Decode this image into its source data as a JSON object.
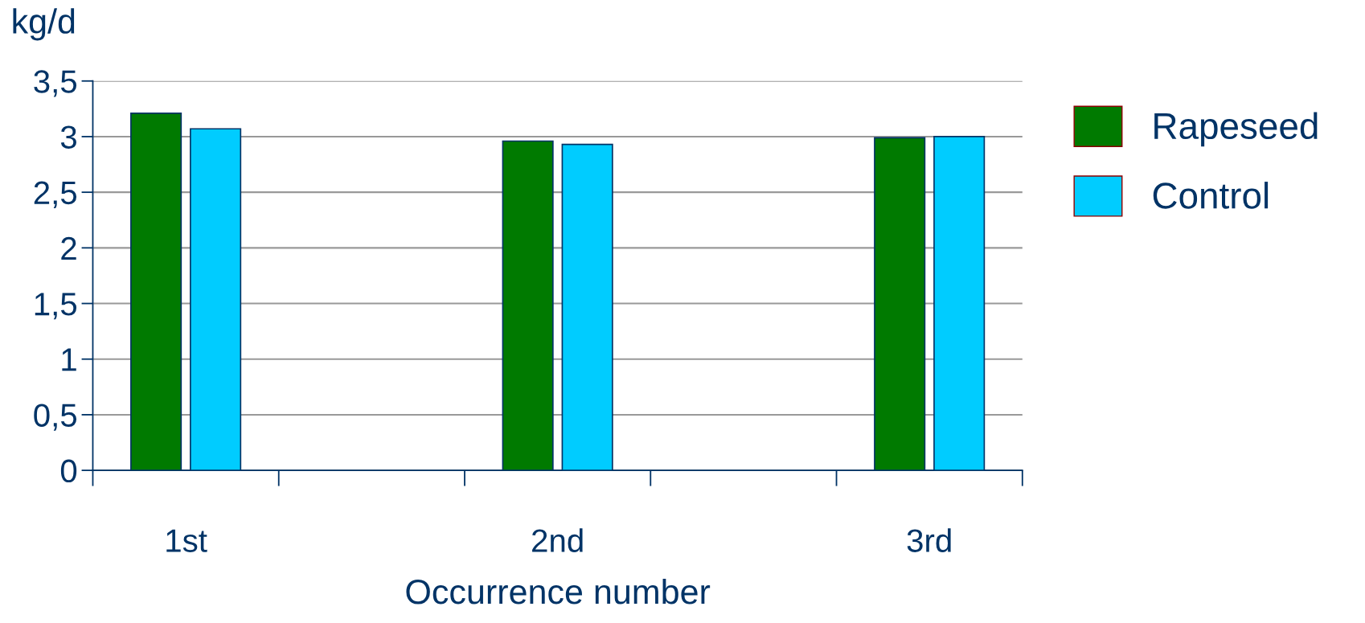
{
  "chart_data": {
    "type": "bar",
    "ylabel": "kg/d",
    "xlabel": "Occurrence number",
    "categories": [
      "1st",
      null,
      "2nd",
      null,
      "3rd"
    ],
    "series": [
      {
        "name": "Rapeseed",
        "color": "#007a00",
        "values": [
          3.21,
          null,
          2.96,
          null,
          2.99
        ]
      },
      {
        "name": "Control",
        "color": "#00ccff",
        "values": [
          3.07,
          null,
          2.93,
          null,
          3.0
        ]
      }
    ],
    "ylim": [
      0,
      3.5
    ],
    "yticks": [
      {
        "value": 0,
        "label": "0"
      },
      {
        "value": 0.5,
        "label": "0,5"
      },
      {
        "value": 1,
        "label": "1"
      },
      {
        "value": 1.5,
        "label": "1,5"
      },
      {
        "value": 2,
        "label": "2"
      },
      {
        "value": 2.5,
        "label": "2,5"
      },
      {
        "value": 3,
        "label": "3"
      },
      {
        "value": 3.5,
        "label": "3,5"
      }
    ],
    "grid": "y",
    "legend": "top right"
  }
}
